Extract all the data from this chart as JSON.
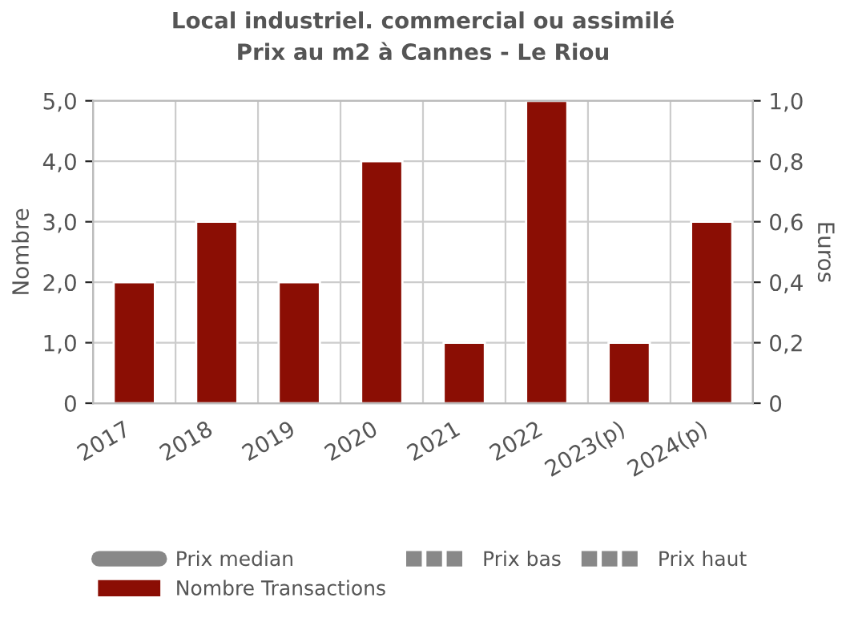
{
  "chart_data": {
    "type": "bar",
    "title": "Local industriel. commercial ou assimilé",
    "subtitle": "Prix au m2 à Cannes - Le Riou",
    "ylabel": "Nombre",
    "y2label": "Euros",
    "categories": [
      "2017",
      "2018",
      "2019",
      "2020",
      "2021",
      "2022",
      "2023(p)",
      "2024(p)"
    ],
    "series": [
      {
        "name": "Prix median",
        "type": "line",
        "color": "#888888",
        "line_style": "solid",
        "values": [
          null,
          null,
          null,
          null,
          null,
          null,
          null,
          null
        ]
      },
      {
        "name": "Prix bas",
        "type": "line",
        "color": "#888888",
        "line_style": "dashed",
        "values": [
          null,
          null,
          null,
          null,
          null,
          null,
          null,
          null
        ]
      },
      {
        "name": "Prix haut",
        "type": "line",
        "color": "#888888",
        "line_style": "dashed",
        "values": [
          null,
          null,
          null,
          null,
          null,
          null,
          null,
          null
        ]
      },
      {
        "name": "Nombre Transactions",
        "color": "#8b0e04",
        "values": [
          2,
          3,
          2,
          4,
          1,
          5,
          1,
          3
        ]
      }
    ],
    "ylim": [
      0,
      5
    ],
    "yticks": [
      0,
      {
        "value": 1,
        "label": "1,0"
      },
      {
        "value": 2,
        "label": "2,0"
      },
      {
        "value": 3,
        "label": "3,0"
      },
      {
        "value": 4,
        "label": "4,0"
      },
      {
        "value": 5,
        "label": "5,0"
      }
    ],
    "y2lim": [
      0,
      1
    ],
    "y2ticks": [
      0,
      {
        "value": 0.2,
        "label": "0,2"
      },
      {
        "value": 0.4,
        "label": "0,4"
      },
      {
        "value": 0.6,
        "label": "0,6"
      },
      {
        "value": 0.8,
        "label": "0,8"
      },
      {
        "value": 1,
        "label": "1,0"
      }
    ],
    "grid": true,
    "legend": "bottom"
  }
}
